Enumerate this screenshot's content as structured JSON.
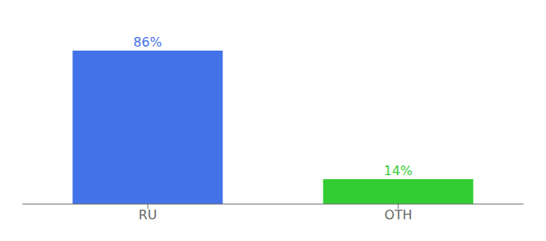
{
  "chart_data": {
    "type": "bar",
    "categories": [
      "RU",
      "OTH"
    ],
    "values": [
      86,
      14
    ],
    "value_labels": [
      "86%",
      "14%"
    ],
    "colors": [
      "#4472e8",
      "#33cc33"
    ],
    "ylim": [
      0,
      100
    ],
    "grid": false,
    "data_labels": true,
    "tick_labels": "x"
  }
}
